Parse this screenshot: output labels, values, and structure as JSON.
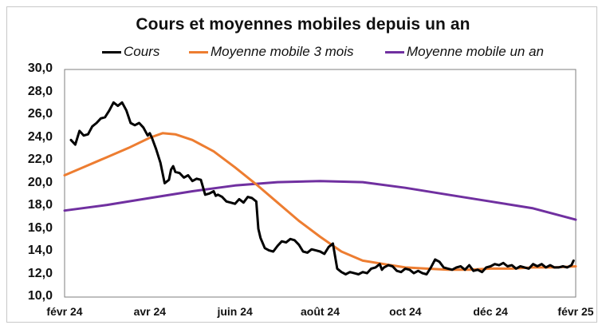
{
  "title": "Cours et moyennes mobiles depuis un an",
  "legend": [
    {
      "label": "Cours",
      "color": "#000000"
    },
    {
      "label": "Moyenne mobile 3 mois",
      "color": "#ED7D31"
    },
    {
      "label": "Moyenne mobile un an",
      "color": "#7030A0"
    }
  ],
  "chart_data": {
    "type": "line",
    "title": "Cours et moyennes mobiles depuis un an",
    "xlabel": "",
    "ylabel": "",
    "ylim": [
      10.0,
      30.0
    ],
    "yticks": [
      "10,0",
      "12,0",
      "14,0",
      "16,0",
      "18,0",
      "20,0",
      "22,0",
      "24,0",
      "26,0",
      "28,0",
      "30,0"
    ],
    "xticks": [
      "févr 24",
      "avr 24",
      "juin 24",
      "août 24",
      "oct 24",
      "déc 24",
      "févr 25"
    ],
    "grid": false,
    "legend_position": "top",
    "x_unit": "months since févr 24",
    "series": [
      {
        "name": "Cours",
        "color": "#000000",
        "x": [
          0.15,
          0.25,
          0.35,
          0.45,
          0.55,
          0.65,
          0.75,
          0.85,
          0.95,
          1.05,
          1.15,
          1.25,
          1.35,
          1.45,
          1.55,
          1.65,
          1.75,
          1.85,
          1.95,
          2.0,
          2.05,
          2.15,
          2.25,
          2.35,
          2.45,
          2.5,
          2.55,
          2.6,
          2.7,
          2.8,
          2.9,
          3.0,
          3.1,
          3.2,
          3.3,
          3.4,
          3.5,
          3.55,
          3.6,
          3.7,
          3.8,
          3.9,
          4.0,
          4.1,
          4.2,
          4.3,
          4.4,
          4.5,
          4.55,
          4.6,
          4.7,
          4.8,
          4.9,
          5.0,
          5.1,
          5.2,
          5.3,
          5.4,
          5.5,
          5.6,
          5.7,
          5.8,
          5.9,
          6.0,
          6.1,
          6.2,
          6.3,
          6.4,
          6.5,
          6.6,
          6.7,
          6.8,
          6.9,
          7.0,
          7.1,
          7.2,
          7.3,
          7.4,
          7.45,
          7.5,
          7.6,
          7.7,
          7.8,
          7.9,
          8.0,
          8.1,
          8.2,
          8.3,
          8.4,
          8.5,
          8.6,
          8.7,
          8.8,
          8.9,
          9.0,
          9.1,
          9.2,
          9.3,
          9.4,
          9.5,
          9.6,
          9.7,
          9.8,
          9.9,
          10.0,
          10.1,
          10.2,
          10.3,
          10.4,
          10.5,
          10.6,
          10.7,
          10.8,
          10.9,
          11.0,
          11.1,
          11.2,
          11.3,
          11.4,
          11.5,
          11.6,
          11.7,
          11.8,
          11.9,
          11.95
        ],
        "values": [
          23.8,
          23.4,
          24.6,
          24.2,
          24.3,
          25.0,
          25.3,
          25.7,
          25.8,
          26.4,
          27.1,
          26.8,
          27.1,
          26.4,
          25.3,
          25.1,
          25.3,
          24.9,
          24.2,
          24.4,
          24.0,
          23.0,
          21.8,
          20.0,
          20.3,
          21.2,
          21.5,
          21.0,
          20.9,
          20.5,
          20.7,
          20.2,
          20.4,
          20.3,
          19.0,
          19.1,
          19.3,
          18.9,
          19.0,
          18.8,
          18.4,
          18.3,
          18.2,
          18.6,
          18.3,
          18.8,
          18.7,
          18.4,
          16.0,
          15.2,
          14.3,
          14.1,
          14.0,
          14.5,
          14.9,
          14.8,
          15.1,
          15.0,
          14.6,
          14.0,
          13.9,
          14.2,
          14.1,
          14.0,
          13.8,
          14.4,
          14.7,
          12.5,
          12.2,
          12.0,
          12.2,
          12.1,
          12.0,
          12.2,
          12.1,
          12.5,
          12.6,
          12.9,
          12.4,
          12.6,
          12.8,
          12.7,
          12.3,
          12.2,
          12.5,
          12.4,
          12.1,
          12.3,
          12.1,
          12.0,
          12.6,
          13.3,
          13.1,
          12.6,
          12.5,
          12.4,
          12.6,
          12.7,
          12.4,
          12.8,
          12.3,
          12.4,
          12.2,
          12.6,
          12.7,
          12.9,
          12.8,
          13.0,
          12.7,
          12.8,
          12.5,
          12.7,
          12.6,
          12.5,
          12.9,
          12.7,
          12.9,
          12.6,
          12.8,
          12.6,
          12.6,
          12.7,
          12.6,
          12.8,
          13.2
        ]
      },
      {
        "name": "Moyenne mobile 3 mois",
        "color": "#ED7D31",
        "x": [
          0,
          0.5,
          1,
          1.5,
          2,
          2.3,
          2.6,
          3,
          3.5,
          4,
          4.5,
          5,
          5.5,
          6,
          6.5,
          7,
          7.5,
          8,
          8.5,
          9,
          9.5,
          10,
          10.5,
          11,
          11.5,
          12
        ],
        "values": [
          20.7,
          21.5,
          22.3,
          23.1,
          24.0,
          24.4,
          24.3,
          23.8,
          22.8,
          21.4,
          19.9,
          18.3,
          16.7,
          15.3,
          14.0,
          13.2,
          12.9,
          12.6,
          12.5,
          12.4,
          12.4,
          12.5,
          12.5,
          12.6,
          12.6,
          12.7
        ]
      },
      {
        "name": "Moyenne mobile un an",
        "color": "#7030A0",
        "x": [
          0,
          1,
          2,
          3,
          4,
          5,
          6,
          7,
          8,
          9,
          10,
          11,
          12
        ],
        "values": [
          17.6,
          18.1,
          18.7,
          19.3,
          19.8,
          20.1,
          20.2,
          20.1,
          19.6,
          19.0,
          18.4,
          17.8,
          16.8
        ]
      }
    ]
  }
}
